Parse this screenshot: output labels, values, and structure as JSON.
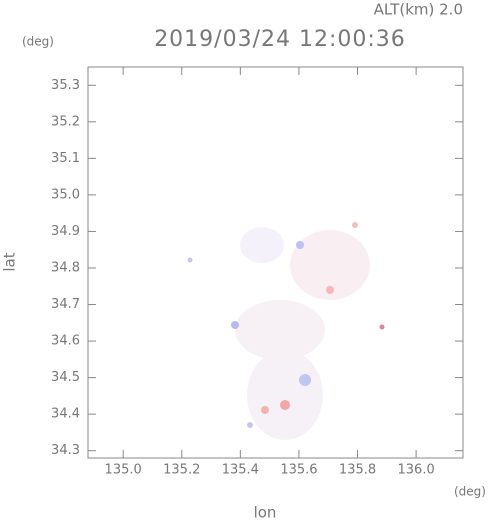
{
  "chart_data": {
    "type": "map",
    "title": "2019/03/24 12:00:36",
    "subtitle": "ALT(km) 2.0",
    "y_unit": "(deg)",
    "x_unit": "(deg)",
    "x_label": "lon",
    "y_label": "lat",
    "xlim": [
      134.88,
      136.16
    ],
    "ylim": [
      34.28,
      35.35
    ],
    "xticks": [
      {
        "value": 135,
        "label": "135.0"
      },
      135.2,
      135.4,
      135.6,
      135.8,
      {
        "value": 136,
        "label": "136.0"
      }
    ],
    "yticks": [
      {
        "value": 34.3,
        "label": "34.3"
      },
      34.4,
      34.5,
      34.6,
      34.7,
      34.8,
      34.9,
      {
        "value": 35,
        "label": "35.0"
      },
      35.1,
      35.2,
      {
        "value": 35.3,
        "label": "35.3"
      }
    ]
  }
}
